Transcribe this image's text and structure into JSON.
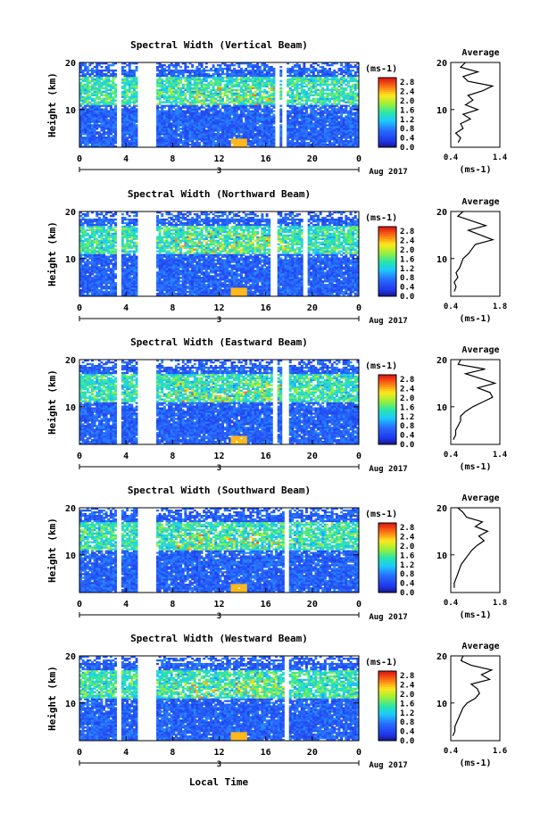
{
  "figure": {
    "date_label": "Aug 2017",
    "xlabel_bottom": "Local Time",
    "day_label": "3",
    "colorbar_unit": "(ms",
    "colorbar_unit_exp": "-1",
    "colorbar_unit_close": ")",
    "avg_title": "Average",
    "avg_unit": "(ms",
    "avg_unit_exp": "-1",
    "avg_unit_close": ")"
  },
  "chart_data": [
    {
      "type": "heatmap",
      "title": "Spectral Width (Vertical Beam)",
      "ylabel": "Height (km)",
      "xlabel": "Local Time",
      "x_ticks": [
        "0",
        "4",
        "8",
        "12",
        "16",
        "20",
        "0"
      ],
      "y_ticks": [
        "10",
        "20"
      ],
      "xlim": [
        0,
        24
      ],
      "ylim": [
        2,
        20
      ],
      "colorbar": {
        "label": "(ms-1)",
        "range": [
          0,
          3.0
        ],
        "ticks": [
          "0.0",
          "0.4",
          "0.8",
          "1.2",
          "1.6",
          "2.0",
          "2.4",
          "2.8"
        ]
      },
      "gaps_hours": [
        [
          3.2,
          3.6
        ],
        [
          5.0,
          6.5
        ],
        [
          16.8,
          17.1
        ],
        [
          17.4,
          17.8
        ]
      ],
      "average_profile": {
        "title": "Average",
        "xlabel": "(ms-1)",
        "x_ticks": [
          "0.4",
          "1.4"
        ],
        "xlim": [
          0.4,
          1.4
        ],
        "y_ticks": [
          "10",
          "20"
        ],
        "ylim": [
          2,
          20
        ],
        "heights": [
          3,
          4,
          5,
          6,
          7,
          8,
          9,
          10,
          11,
          12,
          13,
          14,
          15,
          16,
          17,
          18,
          19,
          20
        ],
        "values": [
          0.55,
          0.6,
          0.5,
          0.65,
          0.6,
          0.8,
          0.65,
          0.95,
          0.7,
          0.85,
          0.75,
          1.05,
          1.25,
          0.75,
          0.65,
          0.95,
          0.6,
          0.7
        ]
      }
    },
    {
      "type": "heatmap",
      "title": "Spectral Width (Northward Beam)",
      "ylabel": "Height (km)",
      "xlabel": "Local Time",
      "x_ticks": [
        "0",
        "4",
        "8",
        "12",
        "16",
        "20",
        "0"
      ],
      "y_ticks": [
        "10",
        "20"
      ],
      "xlim": [
        0,
        24
      ],
      "ylim": [
        2,
        20
      ],
      "colorbar": {
        "label": "(ms-1)",
        "range": [
          0,
          3.0
        ],
        "ticks": [
          "0.0",
          "0.4",
          "0.8",
          "1.2",
          "1.6",
          "2.0",
          "2.4",
          "2.8"
        ]
      },
      "gaps_hours": [
        [
          3.2,
          3.6
        ],
        [
          5.0,
          6.5
        ],
        [
          16.5,
          17.0
        ],
        [
          19.2,
          19.5
        ]
      ],
      "average_profile": {
        "title": "Average",
        "xlabel": "(ms-1)",
        "x_ticks": [
          "0.4",
          "1.8"
        ],
        "xlim": [
          0.4,
          1.8
        ],
        "y_ticks": [
          "10",
          "20"
        ],
        "ylim": [
          2,
          20
        ],
        "heights": [
          3,
          4,
          5,
          6,
          7,
          8,
          9,
          10,
          11,
          12,
          13,
          14,
          15,
          16,
          17,
          18,
          19,
          20
        ],
        "values": [
          0.5,
          0.55,
          0.5,
          0.6,
          0.55,
          0.65,
          0.7,
          0.75,
          0.9,
          1.0,
          1.1,
          1.6,
          1.25,
          0.9,
          1.4,
          1.0,
          0.6,
          0.75
        ]
      }
    },
    {
      "type": "heatmap",
      "title": "Spectral Width (Eastward Beam)",
      "ylabel": "Height (km)",
      "xlabel": "Local Time",
      "x_ticks": [
        "0",
        "4",
        "8",
        "12",
        "16",
        "20",
        "0"
      ],
      "y_ticks": [
        "10",
        "20"
      ],
      "xlim": [
        0,
        24
      ],
      "ylim": [
        2,
        20
      ],
      "colorbar": {
        "label": "(ms-1)",
        "range": [
          0,
          3.0
        ],
        "ticks": [
          "0.0",
          "0.4",
          "0.8",
          "1.2",
          "1.6",
          "2.0",
          "2.4",
          "2.8"
        ]
      },
      "gaps_hours": [
        [
          3.2,
          3.6
        ],
        [
          5.0,
          6.5
        ],
        [
          16.6,
          17.0
        ],
        [
          17.5,
          17.9
        ]
      ],
      "average_profile": {
        "title": "Average",
        "xlabel": "(ms-1)",
        "x_ticks": [
          "0.4",
          "1.4"
        ],
        "xlim": [
          0.4,
          1.4
        ],
        "y_ticks": [
          "10",
          "20"
        ],
        "ylim": [
          2,
          20
        ],
        "heights": [
          3,
          4,
          5,
          6,
          7,
          8,
          9,
          10,
          11,
          12,
          13,
          14,
          15,
          16,
          17,
          18,
          19,
          20
        ],
        "values": [
          0.45,
          0.5,
          0.5,
          0.55,
          0.6,
          0.6,
          0.7,
          0.85,
          1.05,
          1.25,
          1.2,
          0.95,
          1.3,
          1.0,
          0.7,
          1.1,
          0.55,
          0.6
        ]
      }
    },
    {
      "type": "heatmap",
      "title": "Spectral Width (Southward Beam)",
      "ylabel": "Height (km)",
      "xlabel": "Local Time",
      "x_ticks": [
        "0",
        "4",
        "8",
        "12",
        "16",
        "20",
        "0"
      ],
      "y_ticks": [
        "10",
        "20"
      ],
      "xlim": [
        0,
        24
      ],
      "ylim": [
        2,
        20
      ],
      "colorbar": {
        "label": "(ms-1)",
        "range": [
          0,
          3.0
        ],
        "ticks": [
          "0.0",
          "0.4",
          "0.8",
          "1.2",
          "1.6",
          "2.0",
          "2.4",
          "2.8"
        ]
      },
      "gaps_hours": [
        [
          3.2,
          3.6
        ],
        [
          5.0,
          6.5
        ],
        [
          17.6,
          17.9
        ]
      ],
      "average_profile": {
        "title": "Average",
        "xlabel": "(ms-1)",
        "x_ticks": [
          "0.4",
          "1.8"
        ],
        "xlim": [
          0.4,
          1.8
        ],
        "y_ticks": [
          "10",
          "20"
        ],
        "ylim": [
          2,
          20
        ],
        "heights": [
          3,
          4,
          5,
          6,
          7,
          8,
          9,
          10,
          11,
          12,
          13,
          14,
          15,
          16,
          17,
          18,
          19,
          20
        ],
        "values": [
          0.5,
          0.5,
          0.55,
          0.6,
          0.65,
          0.7,
          0.8,
          0.9,
          1.0,
          1.15,
          1.35,
          1.2,
          1.45,
          1.1,
          1.3,
          0.85,
          0.75,
          0.6
        ]
      }
    },
    {
      "type": "heatmap",
      "title": "Spectral Width (Westward Beam)",
      "ylabel": "Height (km)",
      "xlabel": "Local Time",
      "x_ticks": [
        "0",
        "4",
        "8",
        "12",
        "16",
        "20",
        "0"
      ],
      "y_ticks": [
        "10",
        "20"
      ],
      "xlim": [
        0,
        24
      ],
      "ylim": [
        2,
        20
      ],
      "colorbar": {
        "label": "(ms-1)",
        "range": [
          0,
          3.0
        ],
        "ticks": [
          "0.0",
          "0.4",
          "0.8",
          "1.2",
          "1.6",
          "2.0",
          "2.4",
          "2.8"
        ]
      },
      "gaps_hours": [
        [
          3.2,
          3.6
        ],
        [
          5.0,
          6.5
        ],
        [
          17.6,
          17.9
        ]
      ],
      "average_profile": {
        "title": "Average",
        "xlabel": "(ms-1)",
        "x_ticks": [
          "0.4",
          "1.6"
        ],
        "xlim": [
          0.4,
          1.6
        ],
        "y_ticks": [
          "10",
          "20"
        ],
        "ylim": [
          2,
          20
        ],
        "heights": [
          3,
          4,
          5,
          6,
          7,
          8,
          9,
          10,
          11,
          12,
          13,
          14,
          15,
          16,
          17,
          18,
          19,
          20
        ],
        "values": [
          0.45,
          0.5,
          0.5,
          0.55,
          0.6,
          0.65,
          0.7,
          0.8,
          1.0,
          1.1,
          1.05,
          0.9,
          1.35,
          1.15,
          1.4,
          0.9,
          0.65,
          0.7
        ]
      }
    }
  ]
}
